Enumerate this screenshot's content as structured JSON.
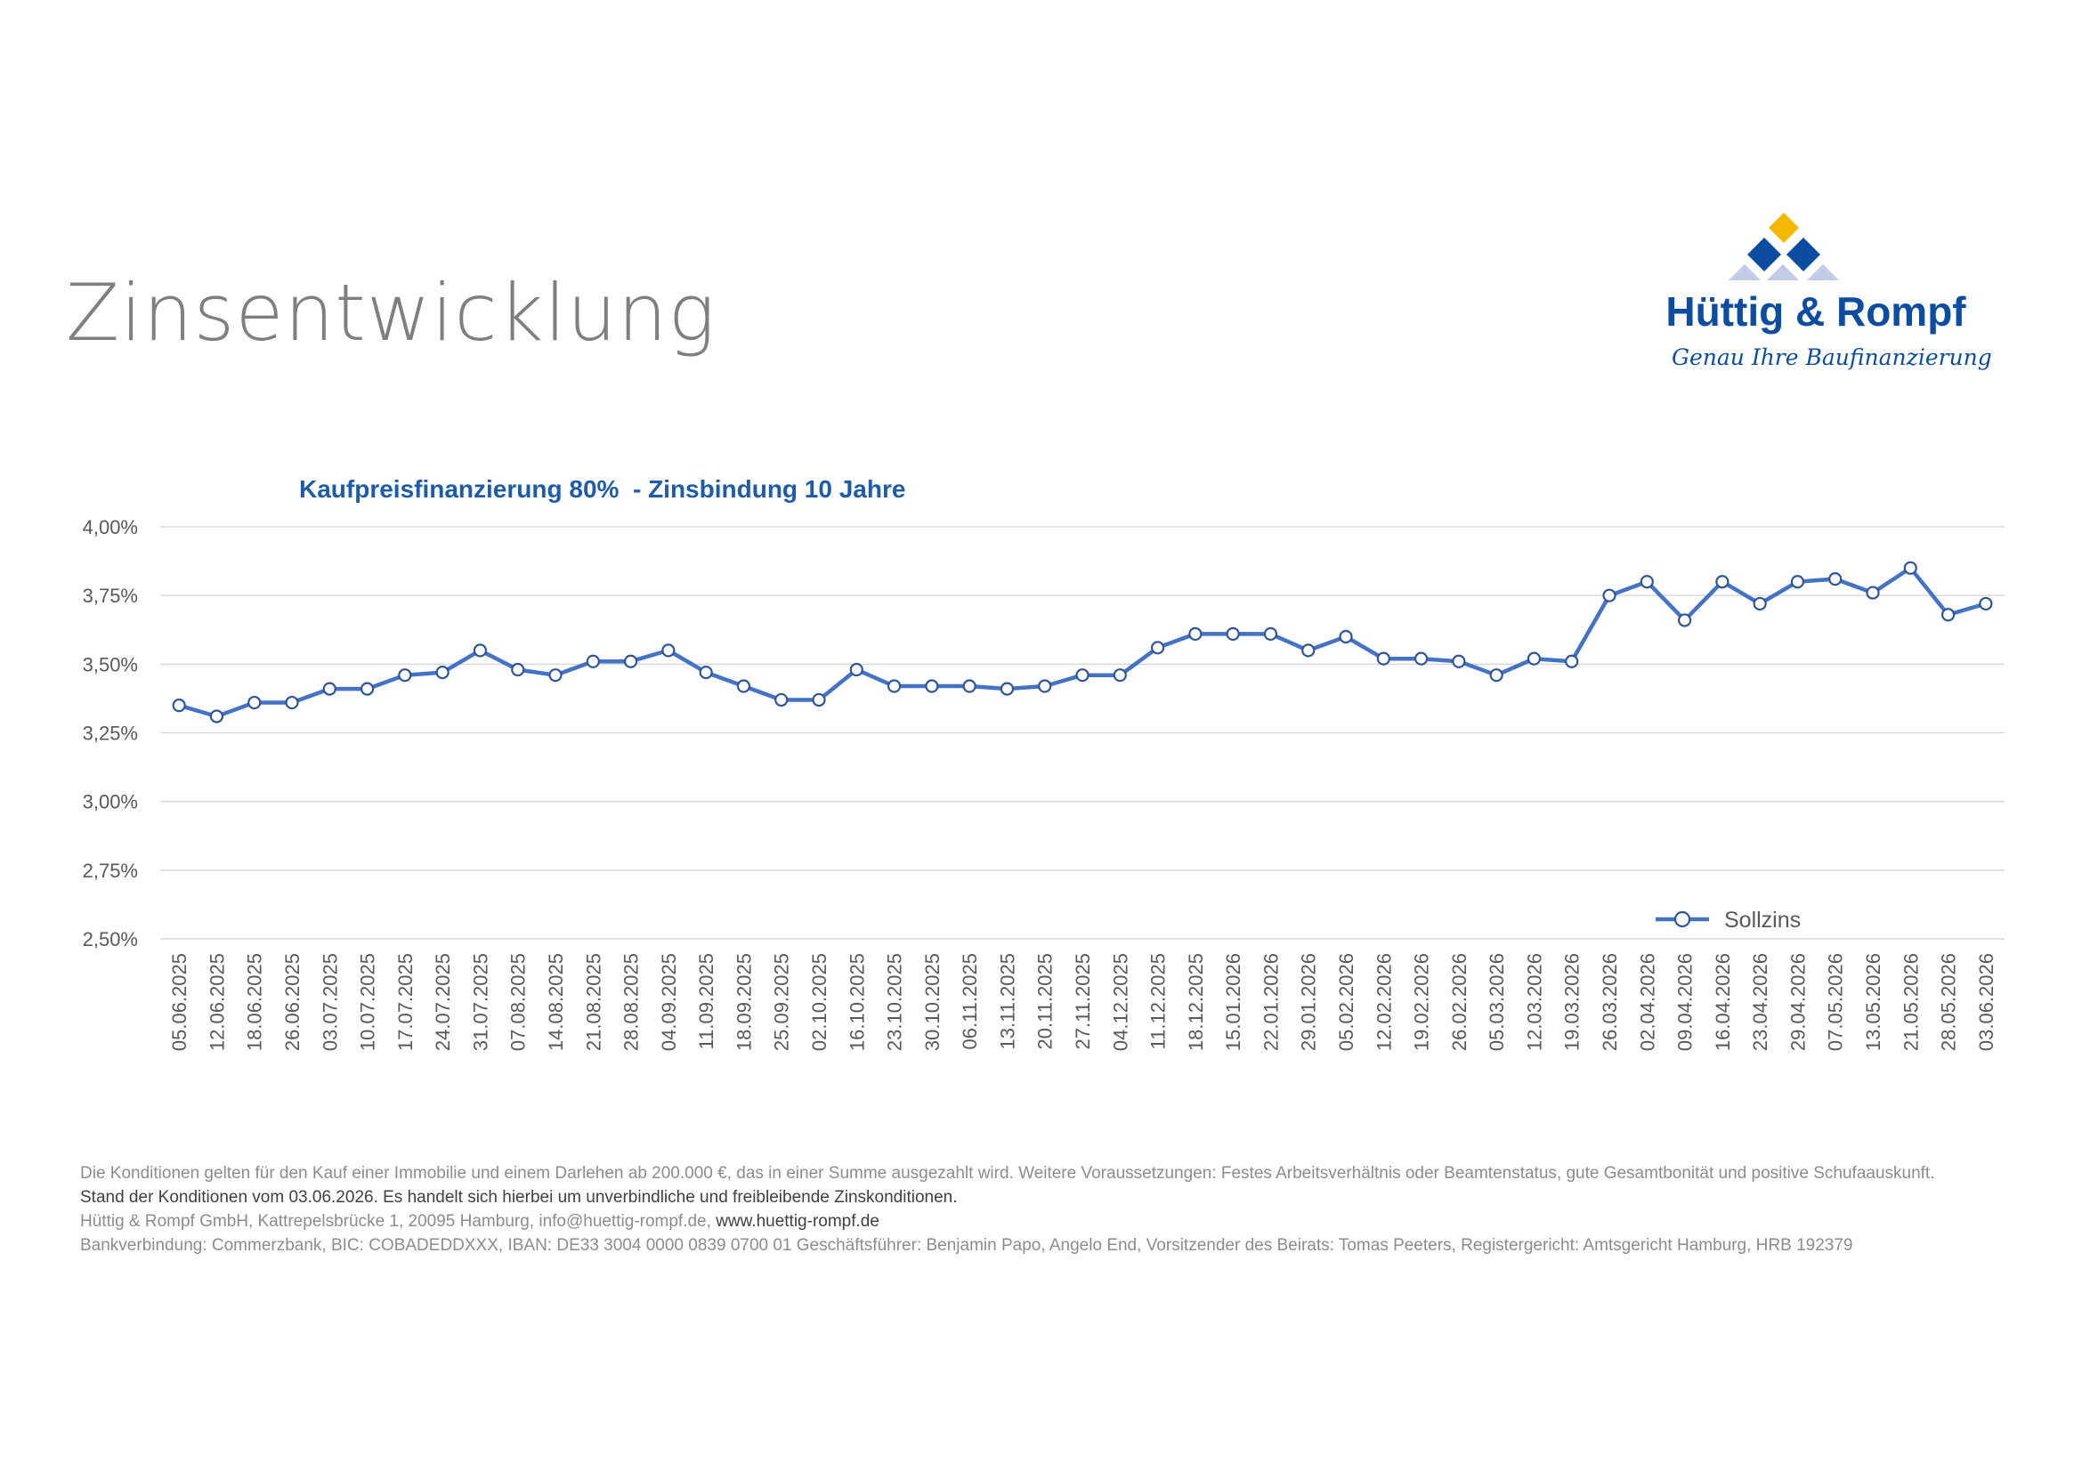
{
  "page": {
    "title": "Zinsentwicklung"
  },
  "logo": {
    "name": "Hüttig & Rompf",
    "tagline": "Genau Ihre Baufinanzierung",
    "colors": {
      "brand_blue": "#0c4da2",
      "gold": "#f5b800",
      "light_blue": "#c2cbe6"
    }
  },
  "chart_data": {
    "type": "line",
    "title": "Kaufpreisfinanzierung 80%  - Zinsbindung 10 Jahre",
    "xlabel": "",
    "ylabel": "",
    "ylim": [
      2.5,
      4.0
    ],
    "yticks": [
      2.5,
      2.75,
      3.0,
      3.25,
      3.5,
      3.75,
      4.0
    ],
    "ytick_labels": [
      "2,50%",
      "2,75%",
      "3,00%",
      "3,25%",
      "3,50%",
      "3,75%",
      "4,00%"
    ],
    "grid": true,
    "legend_position": "bottom-right",
    "line_color": "#4472c4",
    "categories": [
      "05.06.2025",
      "12.06.2025",
      "18.06.2025",
      "26.06.2025",
      "03.07.2025",
      "10.07.2025",
      "17.07.2025",
      "24.07.2025",
      "31.07.2025",
      "07.08.2025",
      "14.08.2025",
      "21.08.2025",
      "28.08.2025",
      "04.09.2025",
      "11.09.2025",
      "18.09.2025",
      "25.09.2025",
      "02.10.2025",
      "16.10.2025",
      "23.10.2025",
      "30.10.2025",
      "06.11.2025",
      "13.11.2025",
      "20.11.2025",
      "27.11.2025",
      "04.12.2025",
      "11.12.2025",
      "18.12.2025",
      "15.01.2026",
      "22.01.2026",
      "29.01.2026",
      "05.02.2026",
      "12.02.2026",
      "19.02.2026",
      "26.02.2026",
      "05.03.2026",
      "12.03.2026",
      "19.03.2026",
      "26.03.2026",
      "02.04.2026",
      "09.04.2026",
      "16.04.2026",
      "23.04.2026",
      "29.04.2026",
      "07.05.2026",
      "13.05.2026",
      "21.05.2026",
      "28.05.2026",
      "03.06.2026"
    ],
    "series": [
      {
        "name": "Sollzins",
        "values": [
          3.35,
          3.31,
          3.36,
          3.36,
          3.41,
          3.41,
          3.46,
          3.47,
          3.55,
          3.48,
          3.46,
          3.51,
          3.51,
          3.55,
          3.47,
          3.42,
          3.37,
          3.37,
          3.48,
          3.42,
          3.42,
          3.42,
          3.41,
          3.42,
          3.46,
          3.46,
          3.56,
          3.61,
          3.61,
          3.61,
          3.55,
          3.6,
          3.52,
          3.52,
          3.51,
          3.46,
          3.52,
          3.51,
          3.75,
          3.8,
          3.66,
          3.8,
          3.72,
          3.8,
          3.81,
          3.76,
          3.85,
          3.68,
          3.72
        ]
      }
    ]
  },
  "footer": {
    "line1": "Die Konditionen gelten für den Kauf einer Immobilie und einem Darlehen ab 200.000 €, das in einer Summe ausgezahlt wird. Weitere Voraussetzungen: Festes Arbeitsverhältnis oder Beamtenstatus, gute Gesamtbonität und positive Schufaauskunft.",
    "line2": "Stand der Konditionen vom 03.06.2026. Es handelt sich hierbei um unverbindliche und freibleibende Zinskonditionen.",
    "line3_text": "Hüttig & Rompf GmbH, Kattrepelsbrücke 1, 20095 Hamburg, info@huettig-rompf.de, ",
    "line3_link": "www.huettig-rompf.de",
    "line4": "Bankverbindung: Commerzbank, BIC: COBADEDDXXX, IBAN: DE33 3004 0000 0839 0700 01 Geschäftsführer: Benjamin Papo, Angelo End, Vorsitzender des Beirats: Tomas Peeters, Registergericht: Amtsgericht Hamburg, HRB 192379"
  }
}
